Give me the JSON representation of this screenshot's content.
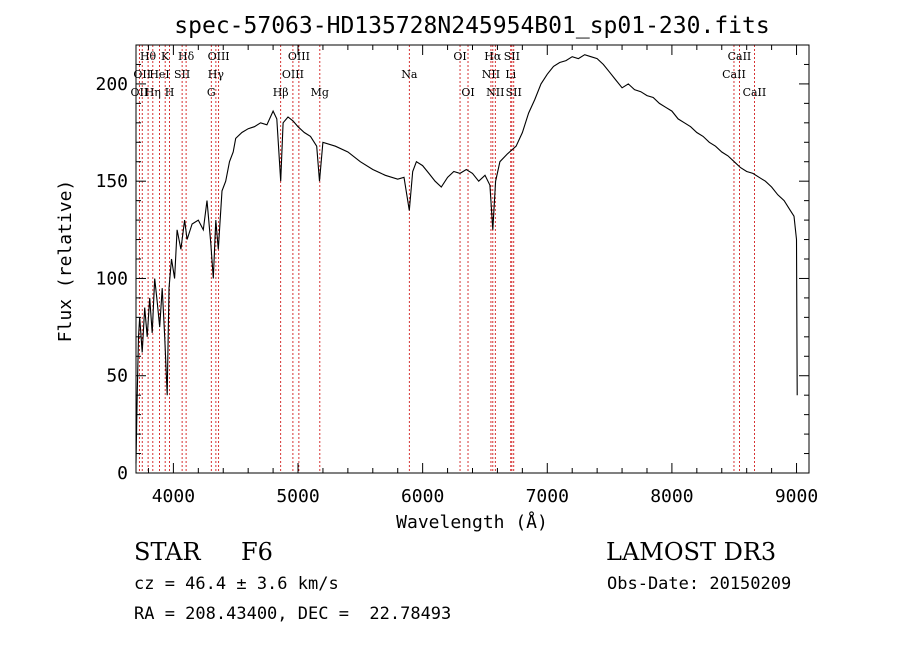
{
  "chart_data": {
    "type": "line",
    "title": "spec-57063-HD135728N245954B01_sp01-230.fits",
    "xlabel": "Wavelength (Å)",
    "ylabel": "Flux (relative)",
    "xlim": [
      3700,
      9100
    ],
    "ylim": [
      0,
      220
    ],
    "xticks": [
      4000,
      5000,
      6000,
      7000,
      8000,
      9000
    ],
    "yticks": [
      0,
      50,
      100,
      150,
      200
    ],
    "grid": false,
    "series": [
      {
        "color": "#000000",
        "points": [
          [
            3700,
            5
          ],
          [
            3710,
            40
          ],
          [
            3720,
            70
          ],
          [
            3730,
            80
          ],
          [
            3750,
            62
          ],
          [
            3770,
            85
          ],
          [
            3790,
            70
          ],
          [
            3810,
            90
          ],
          [
            3830,
            72
          ],
          [
            3850,
            100
          ],
          [
            3870,
            88
          ],
          [
            3890,
            75
          ],
          [
            3910,
            95
          ],
          [
            3930,
            70
          ],
          [
            3950,
            40
          ],
          [
            3965,
            95
          ],
          [
            3985,
            110
          ],
          [
            4010,
            100
          ],
          [
            4030,
            125
          ],
          [
            4060,
            115
          ],
          [
            4090,
            130
          ],
          [
            4110,
            120
          ],
          [
            4150,
            128
          ],
          [
            4200,
            130
          ],
          [
            4240,
            125
          ],
          [
            4270,
            140
          ],
          [
            4300,
            118
          ],
          [
            4320,
            100
          ],
          [
            4340,
            130
          ],
          [
            4360,
            115
          ],
          [
            4390,
            145
          ],
          [
            4420,
            150
          ],
          [
            4450,
            160
          ],
          [
            4480,
            165
          ],
          [
            4500,
            172
          ],
          [
            4550,
            175
          ],
          [
            4600,
            177
          ],
          [
            4650,
            178
          ],
          [
            4700,
            180
          ],
          [
            4750,
            179
          ],
          [
            4800,
            186
          ],
          [
            4830,
            182
          ],
          [
            4861,
            150
          ],
          [
            4880,
            180
          ],
          [
            4920,
            183
          ],
          [
            4960,
            181
          ],
          [
            5000,
            178
          ],
          [
            5050,
            175
          ],
          [
            5100,
            173
          ],
          [
            5150,
            168
          ],
          [
            5172,
            150
          ],
          [
            5200,
            170
          ],
          [
            5300,
            168
          ],
          [
            5400,
            165
          ],
          [
            5500,
            160
          ],
          [
            5600,
            156
          ],
          [
            5700,
            153
          ],
          [
            5800,
            151
          ],
          [
            5850,
            152
          ],
          [
            5893,
            135
          ],
          [
            5920,
            155
          ],
          [
            5950,
            160
          ],
          [
            6000,
            158
          ],
          [
            6050,
            154
          ],
          [
            6100,
            150
          ],
          [
            6150,
            147
          ],
          [
            6200,
            152
          ],
          [
            6250,
            155
          ],
          [
            6300,
            154
          ],
          [
            6350,
            156
          ],
          [
            6400,
            154
          ],
          [
            6450,
            150
          ],
          [
            6500,
            153
          ],
          [
            6540,
            148
          ],
          [
            6563,
            125
          ],
          [
            6585,
            150
          ],
          [
            6620,
            160
          ],
          [
            6680,
            164
          ],
          [
            6750,
            168
          ],
          [
            6800,
            175
          ],
          [
            6850,
            185
          ],
          [
            6900,
            192
          ],
          [
            6950,
            200
          ],
          [
            7000,
            205
          ],
          [
            7050,
            209
          ],
          [
            7100,
            211
          ],
          [
            7150,
            212
          ],
          [
            7200,
            214
          ],
          [
            7250,
            213
          ],
          [
            7300,
            215
          ],
          [
            7350,
            214
          ],
          [
            7400,
            213
          ],
          [
            7450,
            210
          ],
          [
            7500,
            206
          ],
          [
            7550,
            202
          ],
          [
            7600,
            198
          ],
          [
            7650,
            200
          ],
          [
            7700,
            197
          ],
          [
            7750,
            196
          ],
          [
            7800,
            194
          ],
          [
            7850,
            193
          ],
          [
            7900,
            190
          ],
          [
            7950,
            188
          ],
          [
            8000,
            186
          ],
          [
            8050,
            182
          ],
          [
            8100,
            180
          ],
          [
            8150,
            178
          ],
          [
            8200,
            175
          ],
          [
            8250,
            173
          ],
          [
            8300,
            170
          ],
          [
            8350,
            168
          ],
          [
            8400,
            165
          ],
          [
            8450,
            163
          ],
          [
            8500,
            160
          ],
          [
            8550,
            157
          ],
          [
            8600,
            155
          ],
          [
            8650,
            154
          ],
          [
            8700,
            152
          ],
          [
            8750,
            150
          ],
          [
            8800,
            147
          ],
          [
            8850,
            143
          ],
          [
            8900,
            140
          ],
          [
            8950,
            135
          ],
          [
            8980,
            132
          ],
          [
            9000,
            120
          ],
          [
            9005,
            40
          ]
        ]
      }
    ],
    "lines": [
      {
        "x": 3727,
        "label": "OII",
        "row": 2
      },
      {
        "x": 3750,
        "label": "OII",
        "row": 1
      },
      {
        "x": 3797,
        "label": "Hθ",
        "row": 0
      },
      {
        "x": 3835,
        "label": "Hη",
        "row": 2
      },
      {
        "x": 3889,
        "label": "HeI",
        "row": 1
      },
      {
        "x": 3934,
        "label": "K",
        "row": 0
      },
      {
        "x": 3969,
        "label": "H",
        "row": 2
      },
      {
        "x": 4070,
        "label": "SII",
        "row": 1
      },
      {
        "x": 4102,
        "label": "Hδ",
        "row": 0
      },
      {
        "x": 4304,
        "label": "G",
        "row": 2
      },
      {
        "x": 4341,
        "label": "Hγ",
        "row": 1
      },
      {
        "x": 4363,
        "label": "OIII",
        "row": 0
      },
      {
        "x": 4861,
        "label": "Hβ",
        "row": 2
      },
      {
        "x": 4959,
        "label": "OIII",
        "row": 1
      },
      {
        "x": 5007,
        "label": "OIII",
        "row": 0
      },
      {
        "x": 5175,
        "label": "Mg",
        "row": 2
      },
      {
        "x": 5893,
        "label": "Na",
        "row": 1
      },
      {
        "x": 6300,
        "label": "OI",
        "row": 0
      },
      {
        "x": 6364,
        "label": "OI",
        "row": 2
      },
      {
        "x": 6548,
        "label": "NII",
        "row": 1
      },
      {
        "x": 6563,
        "label": "Hα",
        "row": 0
      },
      {
        "x": 6583,
        "label": "NII",
        "row": 2
      },
      {
        "x": 6707,
        "label": "Li",
        "row": 1
      },
      {
        "x": 6716,
        "label": "SII",
        "row": 0
      },
      {
        "x": 6731,
        "label": "SII",
        "row": 2
      },
      {
        "x": 8498,
        "label": "CaII",
        "row": 1
      },
      {
        "x": 8542,
        "label": "CaII",
        "row": 0
      },
      {
        "x": 8662,
        "label": "CaII",
        "row": 2
      }
    ]
  },
  "info": {
    "object_type": "STAR",
    "subclass": "F6",
    "survey": "LAMOST DR3",
    "redshift": "cz = 46.4 ± 3.6 km/s",
    "obs_date": "Obs-Date: 20150209",
    "coords": "RA = 208.43400, DEC =  22.78493"
  },
  "colors": {
    "spectrum": "#000000",
    "line_marker": "#cc0000",
    "axis": "#000000"
  }
}
